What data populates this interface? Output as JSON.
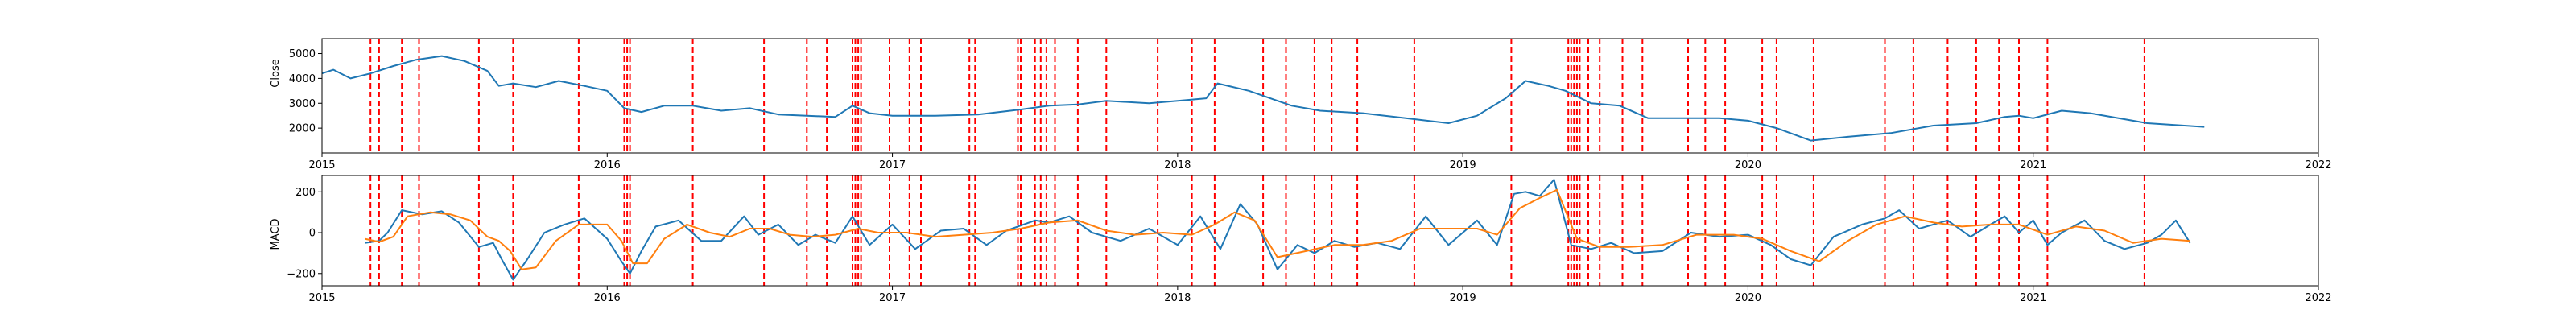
{
  "chart_data": [
    {
      "type": "line",
      "title": "",
      "xlabel": "",
      "ylabel": "Close",
      "xlim": [
        2015,
        2022
      ],
      "ylim": [
        1000,
        5600
      ],
      "x_tick_labels": [
        "2015",
        "2016",
        "2017",
        "2018",
        "2019",
        "2020",
        "2021",
        "2022"
      ],
      "y_ticks": [
        2000,
        3000,
        4000,
        5000
      ],
      "y_tick_labels": [
        "2000",
        "3000",
        "4000",
        "5000"
      ],
      "grid": false,
      "series": [
        {
          "color": "#1f77b4",
          "x": [
            2015.0,
            2015.04,
            2015.1,
            2015.17,
            2015.25,
            2015.33,
            2015.42,
            2015.5,
            2015.58,
            2015.62,
            2015.67,
            2015.75,
            2015.83,
            2015.92,
            2016.0,
            2016.06,
            2016.12,
            2016.2,
            2016.3,
            2016.4,
            2016.5,
            2016.6,
            2016.7,
            2016.8,
            2016.86,
            2016.92,
            2017.0,
            2017.15,
            2017.3,
            2017.45,
            2017.55,
            2017.65,
            2017.75,
            2017.9,
            2018.0,
            2018.1,
            2018.14,
            2018.25,
            2018.4,
            2018.5,
            2018.65,
            2018.8,
            2018.95,
            2019.05,
            2019.15,
            2019.22,
            2019.3,
            2019.36,
            2019.45,
            2019.55,
            2019.65,
            2019.75,
            2019.9,
            2020.0,
            2020.1,
            2020.22,
            2020.35,
            2020.5,
            2020.65,
            2020.8,
            2020.9,
            2020.95,
            2021.0,
            2021.1,
            2021.2,
            2021.4,
            2021.6
          ],
          "values": [
            4200,
            4350,
            4000,
            4200,
            4500,
            4750,
            4900,
            4700,
            4300,
            3700,
            3800,
            3650,
            3900,
            3700,
            3500,
            2800,
            2650,
            2900,
            2900,
            2700,
            2800,
            2550,
            2500,
            2450,
            2900,
            2600,
            2500,
            2500,
            2550,
            2750,
            2900,
            2950,
            3100,
            3000,
            3100,
            3200,
            3800,
            3500,
            2900,
            2700,
            2600,
            2400,
            2200,
            2500,
            3200,
            3900,
            3700,
            3500,
            3000,
            2900,
            2400,
            2400,
            2400,
            2300,
            2000,
            1500,
            1650,
            1800,
            2100,
            2200,
            2450,
            2500,
            2400,
            2700,
            2600,
            2200,
            2050
          ]
        }
      ],
      "event_lines": {
        "color": "#ff0000",
        "style": "dashed",
        "x": [
          2015.17,
          2015.2,
          2015.28,
          2015.34,
          2015.55,
          2015.67,
          2015.9,
          2016.06,
          2016.07,
          2016.08,
          2016.3,
          2016.55,
          2016.7,
          2016.77,
          2016.86,
          2016.87,
          2016.88,
          2016.89,
          2016.99,
          2017.06,
          2017.1,
          2017.27,
          2017.29,
          2017.44,
          2017.45,
          2017.5,
          2017.52,
          2017.54,
          2017.57,
          2017.65,
          2017.75,
          2017.93,
          2018.05,
          2018.13,
          2018.3,
          2018.38,
          2018.48,
          2018.54,
          2018.63,
          2018.83,
          2019.17,
          2019.37,
          2019.38,
          2019.39,
          2019.4,
          2019.41,
          2019.44,
          2019.48,
          2019.56,
          2019.63,
          2019.79,
          2019.85,
          2019.92,
          2020.05,
          2020.1,
          2020.23,
          2020.48,
          2020.58,
          2020.7,
          2020.8,
          2020.88,
          2020.95,
          2021.05,
          2021.39
        ]
      }
    },
    {
      "type": "line",
      "title": "",
      "xlabel": "",
      "ylabel": "MACD",
      "xlim": [
        2015,
        2022
      ],
      "ylim": [
        -260,
        280
      ],
      "x_tick_labels": [
        "2015",
        "2016",
        "2017",
        "2018",
        "2019",
        "2020",
        "2021",
        "2022"
      ],
      "y_ticks": [
        -200,
        0,
        200
      ],
      "y_tick_labels": [
        "−200",
        "0",
        "200"
      ],
      "grid": false,
      "series": [
        {
          "color": "#1f77b4",
          "x": [
            2015.15,
            2015.2,
            2015.23,
            2015.28,
            2015.35,
            2015.42,
            2015.48,
            2015.55,
            2015.6,
            2015.63,
            2015.67,
            2015.72,
            2015.78,
            2015.85,
            2015.92,
            2016.0,
            2016.05,
            2016.08,
            2016.12,
            2016.17,
            2016.25,
            2016.33,
            2016.4,
            2016.48,
            2016.53,
            2016.6,
            2016.67,
            2016.73,
            2016.8,
            2016.86,
            2016.92,
            2017.0,
            2017.08,
            2017.17,
            2017.25,
            2017.33,
            2017.4,
            2017.5,
            2017.55,
            2017.62,
            2017.7,
            2017.8,
            2017.9,
            2018.0,
            2018.08,
            2018.15,
            2018.22,
            2018.28,
            2018.35,
            2018.42,
            2018.48,
            2018.55,
            2018.62,
            2018.7,
            2018.78,
            2018.87,
            2018.95,
            2019.05,
            2019.12,
            2019.18,
            2019.22,
            2019.27,
            2019.32,
            2019.38,
            2019.45,
            2019.52,
            2019.6,
            2019.7,
            2019.8,
            2019.9,
            2020.0,
            2020.08,
            2020.15,
            2020.22,
            2020.3,
            2020.4,
            2020.48,
            2020.53,
            2020.6,
            2020.7,
            2020.78,
            2020.85,
            2020.9,
            2020.95,
            2021.0,
            2021.05,
            2021.1,
            2021.18,
            2021.25,
            2021.32,
            2021.4,
            2021.45,
            2021.5,
            2021.55
          ],
          "values": [
            -50,
            -40,
            0,
            110,
            90,
            105,
            50,
            -70,
            -50,
            -130,
            -230,
            -130,
            0,
            40,
            70,
            -30,
            -140,
            -200,
            -90,
            30,
            60,
            -40,
            -40,
            80,
            -10,
            40,
            -60,
            -10,
            -50,
            80,
            -60,
            40,
            -80,
            10,
            20,
            -60,
            10,
            60,
            50,
            80,
            0,
            -40,
            20,
            -60,
            80,
            -80,
            140,
            40,
            -180,
            -60,
            -100,
            -40,
            -70,
            -50,
            -80,
            80,
            -60,
            60,
            -60,
            190,
            200,
            180,
            260,
            -60,
            -80,
            -50,
            -100,
            -90,
            0,
            -20,
            -10,
            -60,
            -130,
            -160,
            -20,
            40,
            70,
            110,
            20,
            60,
            -20,
            40,
            80,
            0,
            60,
            -60,
            0,
            60,
            -40,
            -80,
            -50,
            -10,
            60,
            -50
          ]
        },
        {
          "color": "#ff7f0e",
          "x": [
            2015.15,
            2015.2,
            2015.25,
            2015.3,
            2015.38,
            2015.45,
            2015.52,
            2015.58,
            2015.62,
            2015.66,
            2015.7,
            2015.75,
            2015.82,
            2015.9,
            2016.0,
            2016.05,
            2016.09,
            2016.14,
            2016.2,
            2016.28,
            2016.36,
            2016.43,
            2016.5,
            2016.57,
            2016.64,
            2016.72,
            2016.8,
            2016.88,
            2016.95,
            2017.05,
            2017.15,
            2017.25,
            2017.35,
            2017.45,
            2017.55,
            2017.65,
            2017.75,
            2017.85,
            2017.95,
            2018.05,
            2018.13,
            2018.2,
            2018.27,
            2018.35,
            2018.45,
            2018.55,
            2018.65,
            2018.75,
            2018.85,
            2018.95,
            2019.05,
            2019.12,
            2019.2,
            2019.27,
            2019.33,
            2019.4,
            2019.48,
            2019.58,
            2019.7,
            2019.82,
            2019.95,
            2020.05,
            2020.15,
            2020.25,
            2020.35,
            2020.45,
            2020.55,
            2020.65,
            2020.75,
            2020.85,
            2020.95,
            2021.05,
            2021.15,
            2021.25,
            2021.35,
            2021.45,
            2021.55
          ],
          "values": [
            -30,
            -45,
            -20,
            80,
            100,
            90,
            60,
            -20,
            -40,
            -90,
            -180,
            -170,
            -40,
            40,
            40,
            -40,
            -150,
            -150,
            -30,
            40,
            0,
            -20,
            20,
            20,
            -10,
            -20,
            -10,
            20,
            0,
            0,
            -20,
            -10,
            0,
            20,
            50,
            60,
            10,
            -10,
            0,
            -10,
            40,
            100,
            60,
            -120,
            -90,
            -60,
            -60,
            -40,
            20,
            20,
            20,
            -10,
            120,
            170,
            210,
            -30,
            -70,
            -70,
            -60,
            -10,
            -10,
            -30,
            -90,
            -140,
            -40,
            40,
            80,
            50,
            30,
            40,
            40,
            -10,
            30,
            10,
            -50,
            -30,
            -40
          ]
        }
      ],
      "event_lines": {
        "color": "#ff0000",
        "style": "dashed",
        "x": [
          2015.17,
          2015.2,
          2015.28,
          2015.34,
          2015.55,
          2015.67,
          2015.9,
          2016.06,
          2016.07,
          2016.08,
          2016.3,
          2016.55,
          2016.7,
          2016.77,
          2016.86,
          2016.87,
          2016.88,
          2016.89,
          2016.99,
          2017.06,
          2017.1,
          2017.27,
          2017.29,
          2017.44,
          2017.45,
          2017.5,
          2017.52,
          2017.54,
          2017.57,
          2017.65,
          2017.75,
          2017.93,
          2018.05,
          2018.13,
          2018.3,
          2018.38,
          2018.48,
          2018.54,
          2018.63,
          2018.83,
          2019.17,
          2019.37,
          2019.38,
          2019.39,
          2019.4,
          2019.41,
          2019.44,
          2019.48,
          2019.56,
          2019.63,
          2019.79,
          2019.85,
          2019.92,
          2020.05,
          2020.1,
          2020.23,
          2020.48,
          2020.58,
          2020.7,
          2020.8,
          2020.88,
          2020.95,
          2021.05,
          2021.39
        ]
      }
    }
  ]
}
